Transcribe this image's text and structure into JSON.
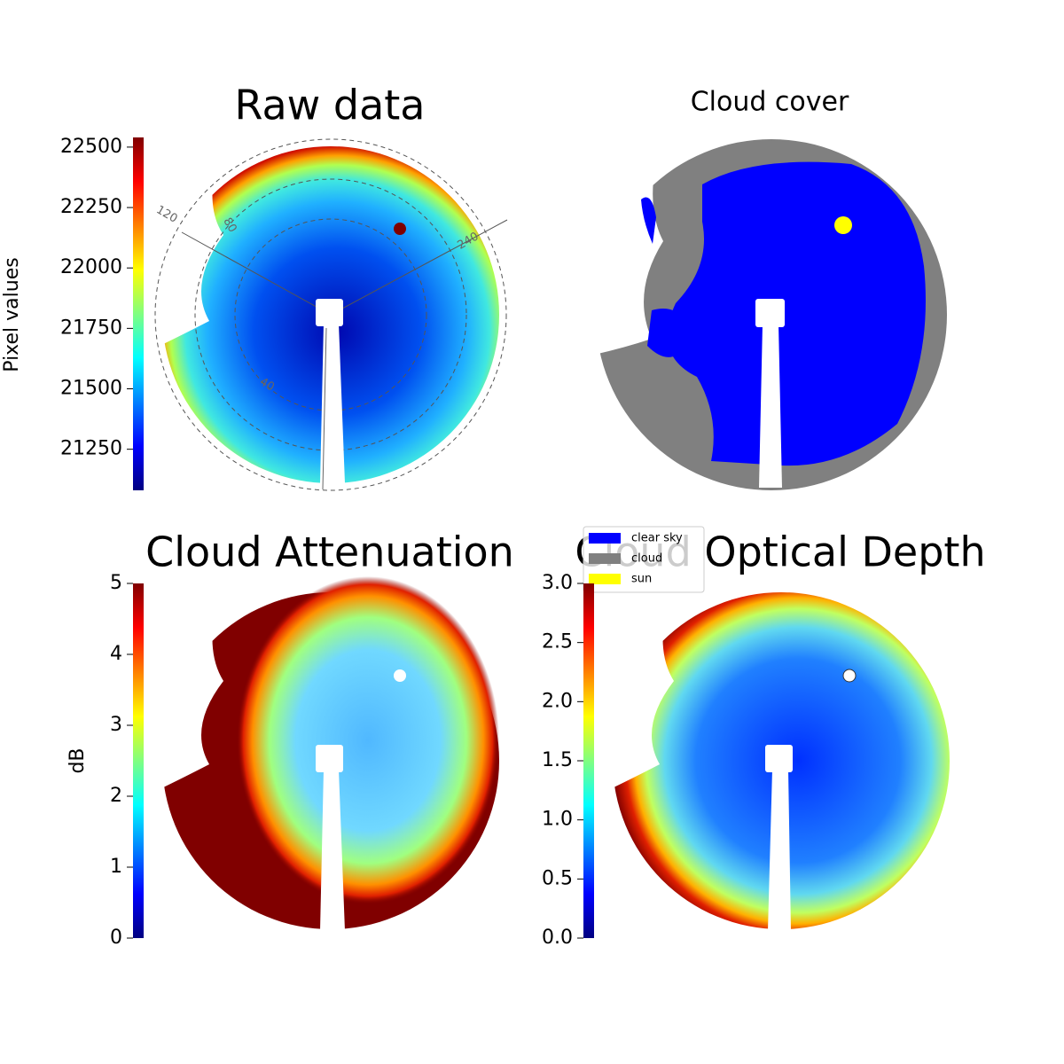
{
  "chart_data": [
    {
      "type": "image",
      "title": "Raw data",
      "colorbar_label": "Pixel values",
      "colormap": "jet",
      "ylim": [
        21080,
        22540
      ],
      "yticks": [
        21250,
        21500,
        21750,
        22000,
        22250,
        22500
      ],
      "annotations": [
        "120",
        "80",
        "240",
        "40"
      ]
    },
    {
      "type": "image",
      "title": "Cloud cover",
      "series": [
        {
          "name": "clear sky",
          "color": "#0000ff"
        },
        {
          "name": "cloud",
          "color": "#808080"
        },
        {
          "name": "sun",
          "color": "#ffff00"
        }
      ]
    },
    {
      "type": "image",
      "title": "Cloud Attenuation",
      "colorbar_label": "dB",
      "colormap": "jet",
      "ylim": [
        0,
        5
      ],
      "yticks": [
        0,
        1,
        2,
        3,
        4,
        5
      ]
    },
    {
      "type": "image",
      "title": "Cloud Optical Depth",
      "colormap": "jet",
      "ylim": [
        0,
        3
      ],
      "yticks": [
        {
          "value": 0,
          "label": "0.0"
        },
        0.5,
        {
          "value": 1,
          "label": "1.0"
        },
        1.5,
        {
          "value": 2,
          "label": "2.0"
        },
        2.5,
        {
          "value": 3,
          "label": "3.0"
        }
      ]
    }
  ]
}
